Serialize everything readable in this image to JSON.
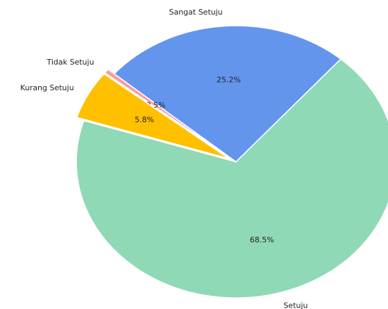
{
  "chart_data": {
    "type": "pie",
    "categories": [
      "Sangat Setuju",
      "Tidak Setuju",
      "Kurang Setuju",
      "Setuju"
    ],
    "values": [
      25.2,
      0.5,
      5.8,
      68.5
    ],
    "value_labels": [
      "25.2%",
      "0.5%",
      "5.8%",
      "68.5%"
    ],
    "colors": [
      "#6495ed",
      "#ff9999",
      "#ffc000",
      "#8fd9b6"
    ],
    "explode": [
      0,
      0.05,
      0.05,
      0
    ],
    "startangle": 49
  }
}
